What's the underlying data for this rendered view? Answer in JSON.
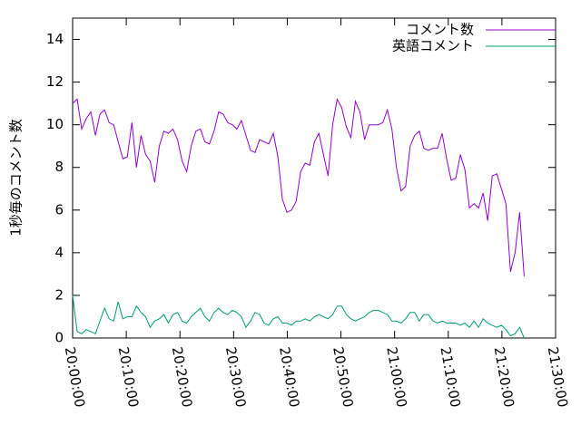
{
  "chart_data": {
    "type": "line",
    "ylabel": "1秒毎のコメント数",
    "x": [
      0,
      51,
      102,
      153,
      204,
      255,
      306,
      357,
      408,
      459,
      510,
      561,
      612,
      663,
      714,
      765,
      816,
      867,
      918,
      969,
      1020,
      1071,
      1122,
      1173,
      1224,
      1275,
      1326,
      1377,
      1428,
      1479,
      1530,
      1581,
      1632,
      1683,
      1734,
      1785,
      1836,
      1887,
      1938,
      1989,
      2040,
      2091,
      2142,
      2193,
      2244,
      2295,
      2346,
      2397,
      2448,
      2499,
      2550,
      2601,
      2652,
      2703,
      2754,
      2805,
      2856,
      2907,
      2958,
      3009,
      3060,
      3111,
      3162,
      3213,
      3264,
      3315,
      3366,
      3417,
      3468,
      3519,
      3570,
      3621,
      3672,
      3723,
      3774,
      3825,
      3876,
      3927,
      3978,
      4029,
      4080,
      4131,
      4182,
      4233,
      4284,
      4335,
      4386,
      4437,
      4488,
      4539,
      4590,
      4641,
      4692,
      4743,
      4794,
      4845,
      4896,
      4947,
      4998,
      5049
    ],
    "series": [
      {
        "name": "コメント数",
        "color": "#9400d3",
        "values": [
          11.0,
          11.2,
          9.8,
          10.3,
          10.6,
          9.5,
          10.5,
          10.7,
          10.1,
          10.0,
          9.2,
          8.4,
          8.5,
          10.1,
          8.0,
          9.5,
          8.6,
          8.3,
          7.3,
          9.0,
          9.7,
          9.6,
          9.8,
          9.3,
          8.3,
          7.8,
          9.0,
          9.7,
          9.8,
          9.2,
          9.1,
          9.7,
          10.6,
          10.5,
          10.1,
          10.0,
          9.8,
          10.2,
          9.5,
          8.8,
          8.7,
          9.3,
          9.2,
          9.1,
          9.6,
          8.5,
          6.5,
          5.9,
          6.0,
          6.4,
          7.8,
          8.2,
          8.1,
          9.2,
          9.6,
          8.6,
          7.6,
          10.0,
          11.2,
          10.8,
          9.9,
          9.4,
          11.1,
          10.6,
          9.3,
          10.0,
          10.0,
          10.0,
          10.1,
          10.7,
          9.8,
          8.0,
          6.9,
          7.1,
          9.0,
          9.5,
          9.7,
          8.9,
          8.8,
          8.9,
          8.9,
          9.6,
          8.4,
          7.4,
          7.5,
          8.6,
          7.9,
          6.1,
          6.3,
          6.1,
          6.8,
          5.5,
          7.6,
          7.7,
          7.0,
          6.3,
          3.1,
          4.0,
          5.9,
          2.9
        ]
      },
      {
        "name": "英語コメント",
        "color": "#009e73",
        "values": [
          2.0,
          0.3,
          0.2,
          0.4,
          0.3,
          0.2,
          0.8,
          1.4,
          0.9,
          0.8,
          1.7,
          0.9,
          1.0,
          1.0,
          1.5,
          1.2,
          1.0,
          0.5,
          0.8,
          0.9,
          1.1,
          0.7,
          1.1,
          1.2,
          0.8,
          0.7,
          1.0,
          1.2,
          1.4,
          1.0,
          0.8,
          1.2,
          1.4,
          1.2,
          1.1,
          1.3,
          1.2,
          1.0,
          0.5,
          0.8,
          1.2,
          1.1,
          0.7,
          0.6,
          0.9,
          1.0,
          0.7,
          0.7,
          0.6,
          0.8,
          0.8,
          0.9,
          0.8,
          1.0,
          1.1,
          1.0,
          0.9,
          1.1,
          1.5,
          1.5,
          1.1,
          0.9,
          0.8,
          0.9,
          1.0,
          1.2,
          1.3,
          1.3,
          1.2,
          1.1,
          0.8,
          0.8,
          0.7,
          0.9,
          1.2,
          1.2,
          0.8,
          1.1,
          1.1,
          0.8,
          0.7,
          0.8,
          0.7,
          0.7,
          0.7,
          0.6,
          0.7,
          0.5,
          0.8,
          0.5,
          0.9,
          0.7,
          0.6,
          0.5,
          0.6,
          0.4,
          0.1,
          0.2,
          0.5,
          0.0
        ]
      }
    ],
    "xlim": [
      0,
      5400
    ],
    "xticks": [
      {
        "value": 0,
        "label": "20:00:00"
      },
      {
        "value": 600,
        "label": "20:10:00"
      },
      {
        "value": 1200,
        "label": "20:20:00"
      },
      {
        "value": 1800,
        "label": "20:30:00"
      },
      {
        "value": 2400,
        "label": "20:40:00"
      },
      {
        "value": 3000,
        "label": "20:50:00"
      },
      {
        "value": 3600,
        "label": "21:00:00"
      },
      {
        "value": 4200,
        "label": "21:10:00"
      },
      {
        "value": 4800,
        "label": "21:20:00"
      },
      {
        "value": 5400,
        "label": "21:30:00"
      }
    ],
    "ylim": [
      0,
      15
    ],
    "yticks": [
      0,
      2,
      4,
      6,
      8,
      10,
      12,
      14
    ],
    "legend": "top-right"
  }
}
